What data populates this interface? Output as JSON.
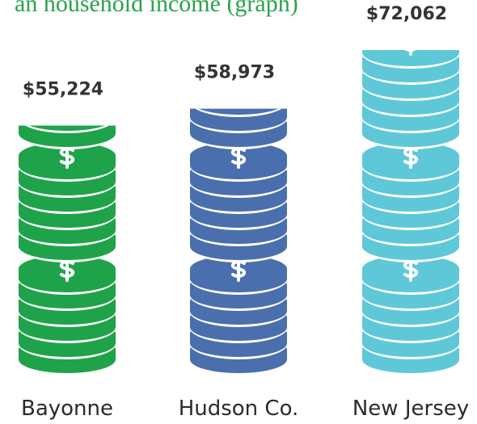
{
  "chart_data": {
    "type": "coin-stack",
    "title": "an household income (graph)",
    "categories": [
      "Bayonne",
      "Hudson Co.",
      "New Jersey"
    ],
    "values": [
      55224,
      58973,
      72062
    ],
    "value_labels": [
      "$55,224",
      "$58,973",
      "$72,062"
    ],
    "colors": [
      "#1fa34a",
      "#4a6fae",
      "#5ec8d8"
    ]
  }
}
